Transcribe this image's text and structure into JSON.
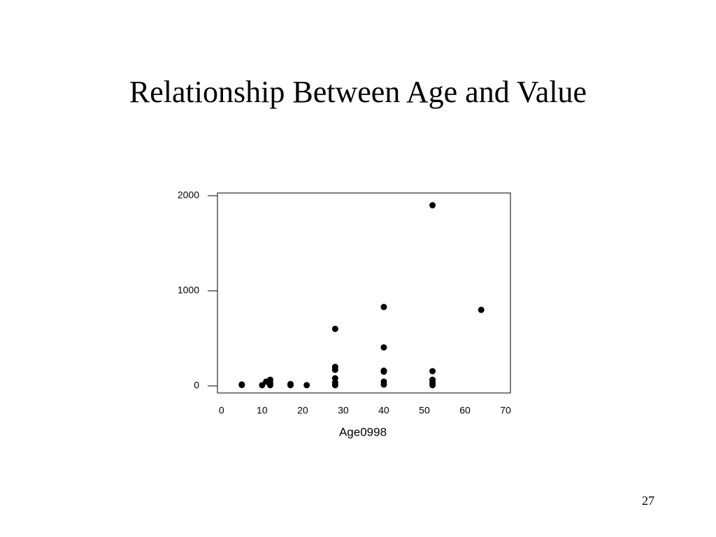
{
  "chart_data": {
    "type": "scatter",
    "title": "Relationship Between Age and Value",
    "x_label": "Age0998",
    "page_number": "27",
    "xlim": [
      -1,
      71.2
    ],
    "ylim": [
      -74,
      2029
    ],
    "xticks": [
      0,
      10,
      20,
      30,
      40,
      50,
      60,
      70
    ],
    "yticks": [
      0,
      1000,
      2000
    ],
    "color": "#000000",
    "x": [
      5,
      5,
      10,
      11,
      12,
      12,
      12,
      17,
      17,
      21,
      28,
      28,
      28,
      28,
      28,
      28,
      40,
      40,
      40,
      40,
      40,
      40,
      52,
      52,
      52,
      52,
      52,
      64
    ],
    "values": [
      15,
      10,
      8,
      45,
      65,
      30,
      8,
      20,
      8,
      8,
      600,
      200,
      170,
      80,
      35,
      8,
      830,
      405,
      160,
      150,
      45,
      15,
      1900,
      155,
      65,
      35,
      8,
      800
    ]
  }
}
